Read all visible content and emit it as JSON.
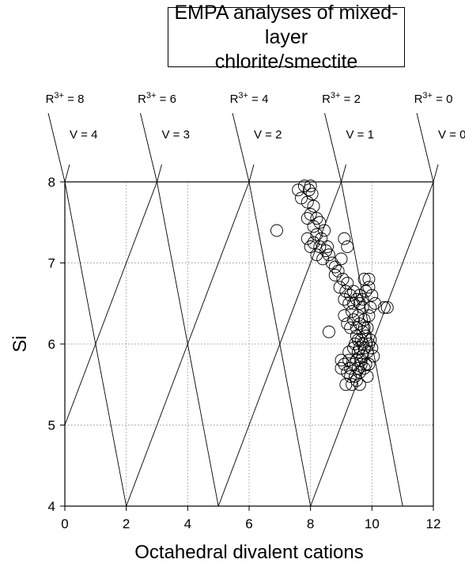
{
  "title_lines": [
    "EMPA analyses of mixed-layer",
    "chlorite/smectite"
  ],
  "chart_data": {
    "type": "scatter",
    "xlabel": "Octahedral divalent cations",
    "ylabel": "Si",
    "xlim": [
      0,
      12
    ],
    "ylim": [
      4,
      8
    ],
    "xticks": [
      "0",
      "2",
      "4",
      "6",
      "8",
      "10",
      "12"
    ],
    "yticks": [
      "4",
      "5",
      "6",
      "7",
      "8"
    ],
    "grid": true,
    "r3_labels": [
      {
        "label": "R3+ = 8",
        "x": 0
      },
      {
        "label": "R3+ = 6",
        "x": 3
      },
      {
        "label": "R3+ = 4",
        "x": 6
      },
      {
        "label": "R3+ = 2",
        "x": 9
      },
      {
        "label": "R3+ = 0",
        "x": 12
      }
    ],
    "v_labels": [
      {
        "label": "V = 4",
        "x": 0
      },
      {
        "label": "V = 3",
        "x": 3
      },
      {
        "label": "V = 2",
        "x": 6
      },
      {
        "label": "V = 1",
        "x": 9
      },
      {
        "label": "V = 0",
        "x": 12
      }
    ],
    "reference_lines": [
      {
        "x1": 0,
        "y1": 8,
        "x2": 2,
        "y2": 4
      },
      {
        "x1": 0,
        "y1": 5,
        "x2": 3,
        "y2": 8
      },
      {
        "x1": 3,
        "y1": 8,
        "x2": 5,
        "y2": 4
      },
      {
        "x1": 2,
        "y1": 4,
        "x2": 6,
        "y2": 8
      },
      {
        "x1": 6,
        "y1": 8,
        "x2": 8,
        "y2": 4
      },
      {
        "x1": 5,
        "y1": 4,
        "x2": 9,
        "y2": 8
      },
      {
        "x1": 9,
        "y1": 8,
        "x2": 11,
        "y2": 4
      },
      {
        "x1": 8,
        "y1": 4,
        "x2": 12,
        "y2": 8
      }
    ],
    "points": [
      [
        7.6,
        7.9
      ],
      [
        7.8,
        7.95
      ],
      [
        7.95,
        7.9
      ],
      [
        8.0,
        7.95
      ],
      [
        8.05,
        7.85
      ],
      [
        7.7,
        7.8
      ],
      [
        7.9,
        7.75
      ],
      [
        8.1,
        7.7
      ],
      [
        8.0,
        7.6
      ],
      [
        8.2,
        7.55
      ],
      [
        7.9,
        7.55
      ],
      [
        8.1,
        7.45
      ],
      [
        8.3,
        7.5
      ],
      [
        8.2,
        7.35
      ],
      [
        8.35,
        7.3
      ],
      [
        8.1,
        7.25
      ],
      [
        8.45,
        7.4
      ],
      [
        8.3,
        7.2
      ],
      [
        7.9,
        7.3
      ],
      [
        8.0,
        7.2
      ],
      [
        8.5,
        7.15
      ],
      [
        8.2,
        7.1
      ],
      [
        8.4,
        7.05
      ],
      [
        8.6,
        7.1
      ],
      [
        8.55,
        7.2
      ],
      [
        8.7,
        7.0
      ],
      [
        8.8,
        6.95
      ],
      [
        9.0,
        7.05
      ],
      [
        8.9,
        6.9
      ],
      [
        9.1,
        7.3
      ],
      [
        9.2,
        7.2
      ],
      [
        8.8,
        6.85
      ],
      [
        9.05,
        6.8
      ],
      [
        9.2,
        6.75
      ],
      [
        9.15,
        6.65
      ],
      [
        8.95,
        6.7
      ],
      [
        9.3,
        6.6
      ],
      [
        9.4,
        6.65
      ],
      [
        9.25,
        6.5
      ],
      [
        9.5,
        6.55
      ],
      [
        9.1,
        6.55
      ],
      [
        9.6,
        6.5
      ],
      [
        9.35,
        6.4
      ],
      [
        9.7,
        6.45
      ],
      [
        9.8,
        6.65
      ],
      [
        9.75,
        6.8
      ],
      [
        9.9,
        6.7
      ],
      [
        10.0,
        6.6
      ],
      [
        10.1,
        6.5
      ],
      [
        9.95,
        6.45
      ],
      [
        10.4,
        6.45
      ],
      [
        10.5,
        6.45
      ],
      [
        9.55,
        6.35
      ],
      [
        9.4,
        6.3
      ],
      [
        9.3,
        6.2
      ],
      [
        9.2,
        6.25
      ],
      [
        9.1,
        6.35
      ],
      [
        9.6,
        6.25
      ],
      [
        9.75,
        6.3
      ],
      [
        9.85,
        6.2
      ],
      [
        9.9,
        6.35
      ],
      [
        9.7,
        6.15
      ],
      [
        9.5,
        6.1
      ],
      [
        9.65,
        6.05
      ],
      [
        9.8,
        6.1
      ],
      [
        9.6,
        5.95
      ],
      [
        9.75,
        5.95
      ],
      [
        9.45,
        6.0
      ],
      [
        9.55,
        5.9
      ],
      [
        9.7,
        5.85
      ],
      [
        9.85,
        5.9
      ],
      [
        9.65,
        5.8
      ],
      [
        9.5,
        5.8
      ],
      [
        9.4,
        5.75
      ],
      [
        9.55,
        5.7
      ],
      [
        9.75,
        5.7
      ],
      [
        9.9,
        5.75
      ],
      [
        9.3,
        5.7
      ],
      [
        9.6,
        5.65
      ],
      [
        9.45,
        5.6
      ],
      [
        9.3,
        5.6
      ],
      [
        9.2,
        5.65
      ],
      [
        9.5,
        5.55
      ],
      [
        9.6,
        5.5
      ],
      [
        9.35,
        5.5
      ],
      [
        9.15,
        5.5
      ],
      [
        9.25,
        5.8
      ],
      [
        9.1,
        5.75
      ],
      [
        9.0,
        5.7
      ],
      [
        9.0,
        5.8
      ],
      [
        9.85,
        5.6
      ],
      [
        10.0,
        5.95
      ],
      [
        9.95,
        6.05
      ],
      [
        9.4,
        6.5
      ],
      [
        8.6,
        6.15
      ],
      [
        9.7,
        6.55
      ],
      [
        9.9,
        6.0
      ],
      [
        9.8,
        5.75
      ],
      [
        10.05,
        5.85
      ],
      [
        9.4,
        5.95
      ],
      [
        9.25,
        5.9
      ],
      [
        6.9,
        7.4
      ],
      [
        9.6,
        6.6
      ],
      [
        9.9,
        6.8
      ],
      [
        9.7,
        6.0
      ],
      [
        9.55,
        6.05
      ],
      [
        9.65,
        5.75
      ],
      [
        9.75,
        6.2
      ],
      [
        9.5,
        6.2
      ]
    ]
  }
}
